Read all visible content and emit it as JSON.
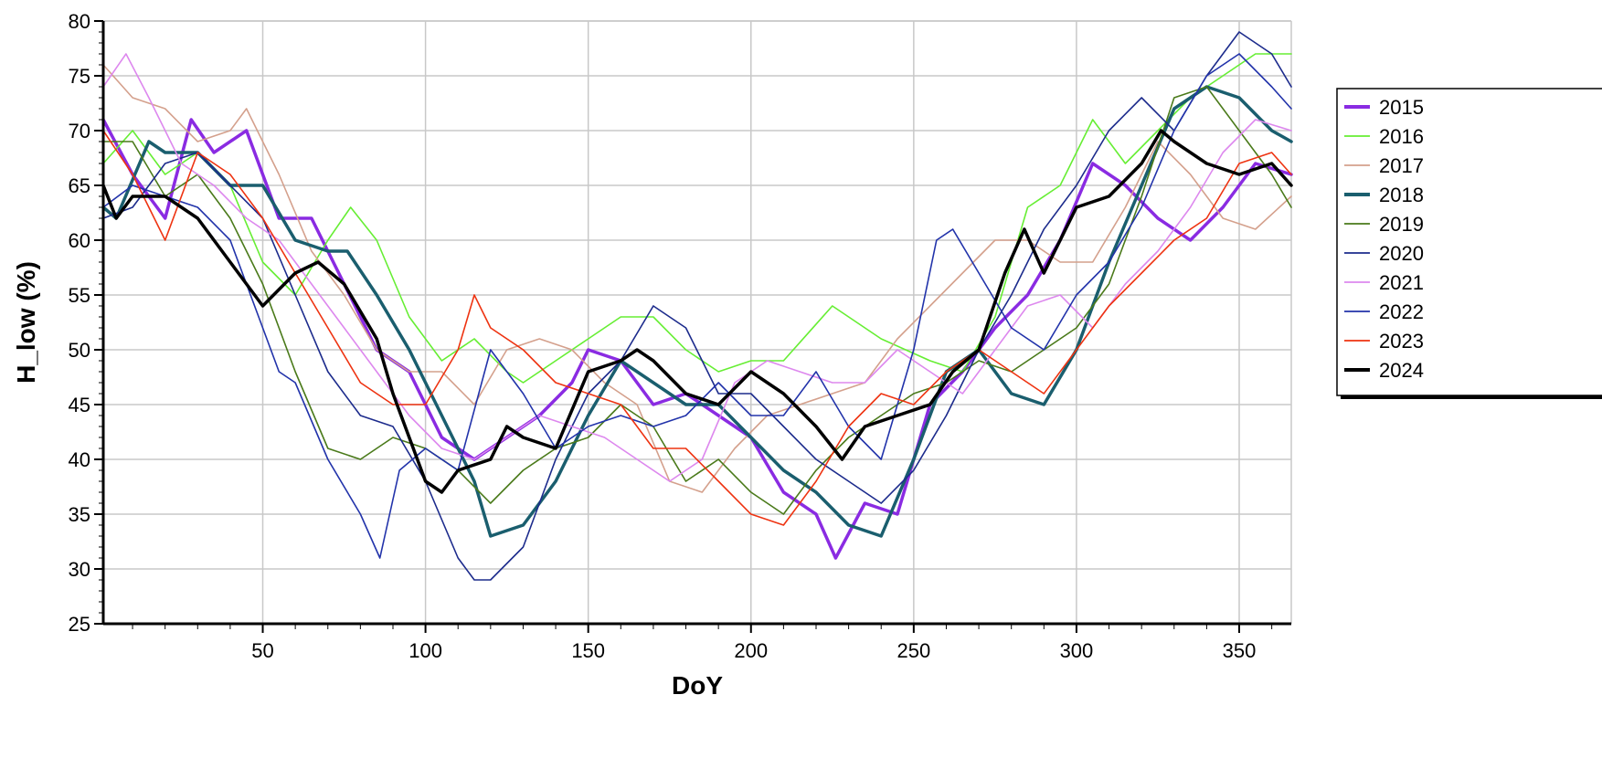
{
  "chart_data": {
    "type": "line",
    "title": "",
    "xlabel": "DoY",
    "ylabel": "H_low (%)",
    "xlim": [
      1,
      366
    ],
    "ylim": [
      25,
      80
    ],
    "xticks": [
      50,
      100,
      150,
      200,
      250,
      300,
      350
    ],
    "yticks": [
      25,
      30,
      35,
      40,
      45,
      50,
      55,
      60,
      65,
      70,
      75,
      80
    ],
    "grid": true,
    "legend_position": "right",
    "series": [
      {
        "name": "2015",
        "color": "#8a2be2",
        "bold": true,
        "x": [
          1,
          10,
          20,
          28,
          35,
          45,
          55,
          65,
          75,
          85,
          95,
          105,
          115,
          125,
          135,
          145,
          150,
          160,
          170,
          180,
          190,
          200,
          210,
          220,
          226,
          235,
          245,
          255,
          265,
          275,
          285,
          295,
          305,
          315,
          325,
          335,
          345,
          355,
          366
        ],
        "y": [
          71,
          66,
          62,
          71,
          68,
          70,
          62,
          62,
          56,
          50,
          48,
          42,
          40,
          42,
          44,
          47,
          50,
          49,
          45,
          46,
          44,
          42,
          37,
          35,
          31,
          36,
          35,
          45,
          48,
          52,
          55,
          60,
          67,
          65,
          62,
          60,
          63,
          67,
          66
        ]
      },
      {
        "name": "2016",
        "color": "#66ee33",
        "bold": false,
        "x": [
          1,
          10,
          20,
          30,
          40,
          50,
          60,
          70,
          77,
          85,
          95,
          105,
          115,
          125,
          130,
          140,
          150,
          160,
          170,
          180,
          190,
          200,
          210,
          225,
          240,
          255,
          265,
          275,
          285,
          295,
          305,
          315,
          325,
          335,
          345,
          355,
          366
        ],
        "y": [
          67,
          70,
          66,
          68,
          65,
          58,
          55,
          60,
          63,
          60,
          53,
          49,
          51,
          48,
          47,
          49,
          51,
          53,
          53,
          50,
          48,
          49,
          49,
          54,
          51,
          49,
          48,
          53,
          63,
          65,
          71,
          67,
          70,
          73,
          75,
          77,
          77
        ]
      },
      {
        "name": "2017",
        "color": "#d4a08c",
        "bold": false,
        "x": [
          1,
          10,
          20,
          30,
          40,
          45,
          55,
          65,
          75,
          85,
          95,
          105,
          115,
          125,
          135,
          145,
          155,
          165,
          175,
          185,
          195,
          205,
          215,
          225,
          235,
          245,
          255,
          265,
          275,
          285,
          295,
          305,
          315,
          325,
          335,
          345,
          355,
          366
        ],
        "y": [
          76,
          73,
          72,
          69,
          70,
          72,
          66,
          59,
          55,
          50,
          48,
          48,
          45,
          50,
          51,
          50,
          47,
          45,
          38,
          37,
          41,
          44,
          45,
          46,
          47,
          51,
          54,
          57,
          60,
          60,
          58,
          58,
          63,
          69,
          66,
          62,
          61,
          64
        ]
      },
      {
        "name": "2018",
        "color": "#1a5e6e",
        "bold": true,
        "x": [
          1,
          5,
          15,
          20,
          30,
          40,
          50,
          60,
          70,
          76,
          85,
          95,
          105,
          115,
          120,
          130,
          140,
          150,
          160,
          170,
          180,
          190,
          200,
          210,
          220,
          230,
          240,
          250,
          260,
          270,
          280,
          290,
          300,
          310,
          320,
          330,
          340,
          350,
          360,
          366
        ],
        "y": [
          63,
          62,
          69,
          68,
          68,
          65,
          65,
          60,
          59,
          59,
          55,
          50,
          44,
          38,
          33,
          34,
          38,
          44,
          49,
          47,
          45,
          45,
          42,
          39,
          37,
          34,
          33,
          40,
          48,
          50,
          46,
          45,
          50,
          58,
          65,
          72,
          74,
          73,
          70,
          69
        ]
      },
      {
        "name": "2019",
        "color": "#4a7a1a",
        "bold": false,
        "x": [
          1,
          10,
          20,
          30,
          40,
          50,
          60,
          70,
          80,
          90,
          100,
          110,
          120,
          130,
          140,
          150,
          160,
          170,
          180,
          190,
          200,
          210,
          220,
          230,
          240,
          250,
          260,
          270,
          280,
          290,
          300,
          310,
          320,
          330,
          340,
          350,
          360,
          366
        ],
        "y": [
          69,
          69,
          64,
          66,
          62,
          56,
          48,
          41,
          40,
          42,
          41,
          39,
          36,
          39,
          41,
          42,
          45,
          43,
          38,
          40,
          37,
          35,
          39,
          42,
          44,
          46,
          47,
          49,
          48,
          50,
          52,
          56,
          64,
          73,
          74,
          70,
          66,
          63
        ]
      },
      {
        "name": "2020",
        "color": "#1c2b8c",
        "bold": false,
        "x": [
          1,
          10,
          20,
          30,
          40,
          50,
          60,
          70,
          80,
          90,
          100,
          110,
          115,
          120,
          130,
          140,
          150,
          160,
          170,
          180,
          190,
          200,
          210,
          220,
          230,
          240,
          250,
          260,
          270,
          280,
          290,
          300,
          310,
          320,
          330,
          340,
          350,
          360,
          366
        ],
        "y": [
          62,
          63,
          67,
          68,
          65,
          62,
          55,
          48,
          44,
          43,
          38,
          31,
          29,
          29,
          32,
          40,
          46,
          49,
          54,
          52,
          46,
          46,
          43,
          40,
          38,
          36,
          39,
          44,
          50,
          55,
          61,
          65,
          70,
          73,
          70,
          75,
          79,
          77,
          74
        ]
      },
      {
        "name": "2021",
        "color": "#dd88ee",
        "bold": false,
        "x": [
          1,
          8,
          15,
          25,
          35,
          45,
          55,
          65,
          75,
          85,
          95,
          105,
          115,
          125,
          135,
          145,
          155,
          165,
          175,
          185,
          195,
          205,
          215,
          225,
          235,
          245,
          255,
          265,
          275,
          285,
          295,
          305,
          315,
          325,
          335,
          345,
          355,
          366
        ],
        "y": [
          74,
          77,
          73,
          67,
          65,
          62,
          60,
          56,
          52,
          48,
          44,
          41,
          40,
          42,
          44,
          43,
          42,
          40,
          38,
          40,
          47,
          49,
          48,
          47,
          47,
          50,
          48,
          46,
          50,
          54,
          55,
          52,
          56,
          59,
          63,
          68,
          71,
          70
        ]
      },
      {
        "name": "2022",
        "color": "#2233aa",
        "bold": false,
        "x": [
          1,
          10,
          20,
          30,
          40,
          50,
          55,
          60,
          70,
          80,
          86,
          92,
          100,
          110,
          120,
          130,
          140,
          150,
          160,
          170,
          180,
          190,
          200,
          210,
          220,
          230,
          240,
          250,
          257,
          262,
          270,
          280,
          290,
          300,
          310,
          320,
          330,
          340,
          350,
          360,
          366
        ],
        "y": [
          63,
          65,
          64,
          63,
          60,
          52,
          48,
          47,
          40,
          35,
          31,
          39,
          41,
          39,
          50,
          46,
          41,
          43,
          44,
          43,
          44,
          47,
          44,
          44,
          48,
          43,
          40,
          50,
          60,
          61,
          57,
          52,
          50,
          55,
          58,
          63,
          70,
          75,
          77,
          74,
          72
        ]
      },
      {
        "name": "2023",
        "color": "#ee3311",
        "bold": false,
        "x": [
          1,
          10,
          20,
          30,
          40,
          50,
          60,
          70,
          80,
          90,
          100,
          110,
          115,
          120,
          130,
          140,
          150,
          160,
          170,
          180,
          190,
          200,
          210,
          220,
          230,
          240,
          250,
          260,
          270,
          280,
          290,
          300,
          310,
          320,
          330,
          340,
          350,
          360,
          366
        ],
        "y": [
          70,
          66,
          60,
          68,
          66,
          62,
          57,
          52,
          47,
          45,
          45,
          50,
          55,
          52,
          50,
          47,
          46,
          45,
          41,
          41,
          38,
          35,
          34,
          38,
          43,
          46,
          45,
          48,
          50,
          48,
          46,
          50,
          54,
          57,
          60,
          62,
          67,
          68,
          66
        ]
      },
      {
        "name": "2024",
        "color": "#000000",
        "bold": true,
        "x": [
          1,
          5,
          10,
          20,
          30,
          40,
          50,
          60,
          67,
          75,
          85,
          90,
          95,
          100,
          105,
          110,
          120,
          125,
          130,
          140,
          150,
          160,
          165,
          170,
          180,
          190,
          200,
          210,
          220,
          228,
          235,
          245,
          255,
          262,
          270,
          278,
          284,
          290,
          300,
          310,
          320,
          326,
          330,
          340,
          350,
          360,
          366
        ],
        "y": [
          65,
          62,
          64,
          64,
          62,
          58,
          54,
          57,
          58,
          56,
          51,
          46,
          42,
          38,
          37,
          39,
          40,
          43,
          42,
          41,
          48,
          49,
          50,
          49,
          46,
          45,
          48,
          46,
          43,
          40,
          43,
          44,
          45,
          48,
          50,
          57,
          61,
          57,
          63,
          64,
          67,
          70,
          69,
          67,
          66,
          67,
          65
        ]
      }
    ]
  }
}
